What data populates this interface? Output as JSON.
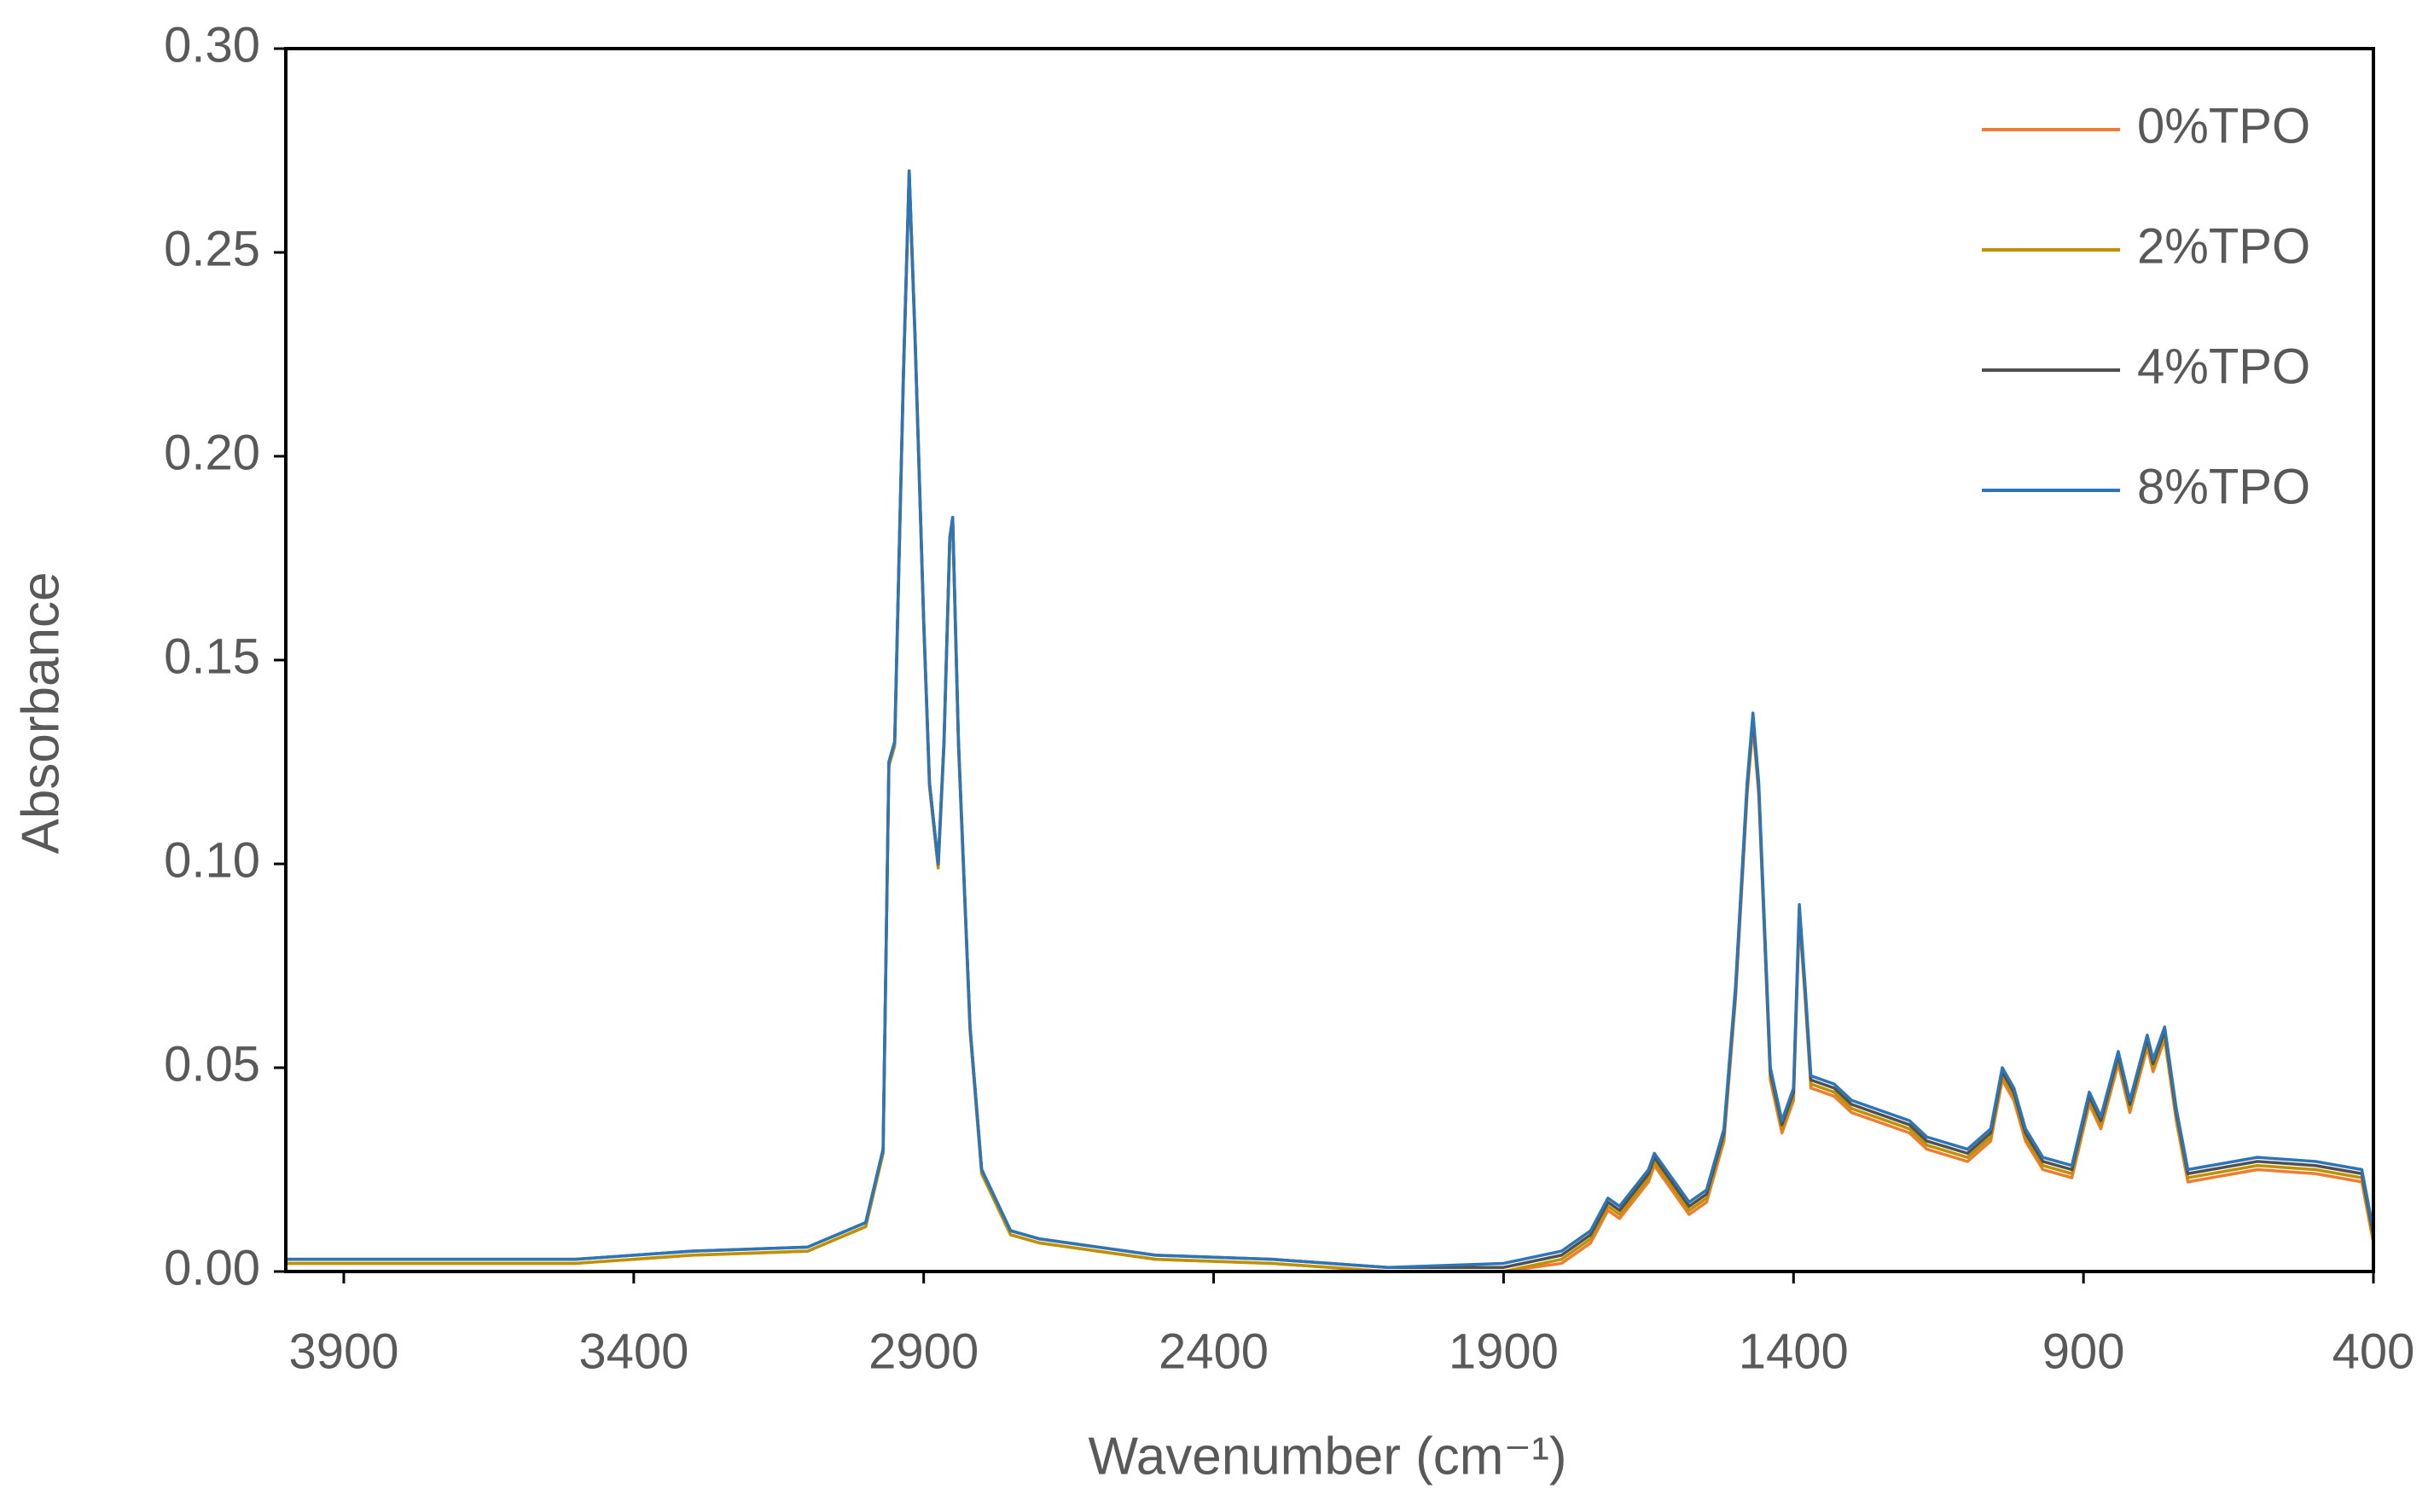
{
  "chart_data": {
    "type": "line",
    "x_label": "Wavenumber (cm⁻¹)",
    "y_label": "Absorbance",
    "xlim": [
      4000,
      400
    ],
    "ylim": [
      0,
      0.3
    ],
    "xticks": [
      3900,
      3400,
      2900,
      2400,
      1900,
      1400,
      900,
      400
    ],
    "yticks": [
      {
        "value": 0,
        "label": "0.00"
      },
      {
        "value": 0.05,
        "label": "0.05"
      },
      {
        "value": 0.1,
        "label": "0.10"
      },
      {
        "value": 0.15,
        "label": "0.15"
      },
      {
        "value": 0.2,
        "label": "0.20"
      },
      {
        "value": 0.25,
        "label": "0.25"
      },
      {
        "value": 0.3,
        "label": "0.30"
      }
    ],
    "legend": "upper right",
    "x": [
      4000,
      3500,
      3300,
      3100,
      3050,
      3000,
      2970,
      2960,
      2950,
      2935,
      2925,
      2915,
      2900,
      2890,
      2875,
      2865,
      2855,
      2850,
      2840,
      2820,
      2800,
      2750,
      2700,
      2600,
      2500,
      2300,
      2100,
      1900,
      1800,
      1750,
      1720,
      1700,
      1650,
      1640,
      1620,
      1580,
      1550,
      1520,
      1500,
      1480,
      1470,
      1460,
      1440,
      1420,
      1400,
      1390,
      1380,
      1370,
      1330,
      1300,
      1200,
      1170,
      1100,
      1060,
      1040,
      1020,
      1000,
      970,
      920,
      890,
      870,
      840,
      820,
      790,
      780,
      760,
      740,
      720,
      600,
      500,
      420,
      400
    ],
    "series": [
      {
        "name": "0%TPO",
        "color": "#ed7d31",
        "values": [
          0.002,
          0.002,
          0.004,
          0.005,
          0.008,
          0.011,
          0.029,
          0.124,
          0.129,
          0.219,
          0.269,
          0.229,
          0.159,
          0.119,
          0.099,
          0.129,
          0.179,
          0.184,
          0.129,
          0.059,
          0.024,
          0.009,
          0.007,
          0.005,
          0.003,
          0.002,
          0.0,
          0.0,
          0.002,
          0.007,
          0.015,
          0.013,
          0.022,
          0.026,
          0.022,
          0.014,
          0.017,
          0.032,
          0.067,
          0.117,
          0.134,
          0.117,
          0.047,
          0.034,
          0.042,
          0.087,
          0.067,
          0.045,
          0.043,
          0.039,
          0.034,
          0.03,
          0.027,
          0.032,
          0.047,
          0.042,
          0.032,
          0.025,
          0.023,
          0.041,
          0.035,
          0.051,
          0.039,
          0.055,
          0.049,
          0.057,
          0.037,
          0.022,
          0.025,
          0.024,
          0.022,
          0.007
        ]
      },
      {
        "name": "2%TPO",
        "color": "#bf9000",
        "values": [
          0.002,
          0.002,
          0.004,
          0.005,
          0.008,
          0.011,
          0.029,
          0.124,
          0.129,
          0.219,
          0.269,
          0.229,
          0.159,
          0.119,
          0.099,
          0.129,
          0.179,
          0.184,
          0.129,
          0.059,
          0.024,
          0.009,
          0.007,
          0.005,
          0.003,
          0.002,
          0.0,
          0.0,
          0.003,
          0.008,
          0.016,
          0.014,
          0.023,
          0.027,
          0.023,
          0.015,
          0.018,
          0.033,
          0.068,
          0.118,
          0.135,
          0.118,
          0.048,
          0.035,
          0.043,
          0.088,
          0.068,
          0.046,
          0.044,
          0.04,
          0.035,
          0.031,
          0.028,
          0.033,
          0.048,
          0.043,
          0.033,
          0.026,
          0.024,
          0.042,
          0.036,
          0.052,
          0.04,
          0.056,
          0.05,
          0.058,
          0.038,
          0.023,
          0.026,
          0.025,
          0.023,
          0.008
        ]
      },
      {
        "name": "4%TPO",
        "color": "#505050",
        "values": [
          0.003,
          0.003,
          0.005,
          0.006,
          0.009,
          0.012,
          0.03,
          0.125,
          0.13,
          0.22,
          0.27,
          0.23,
          0.16,
          0.12,
          0.1,
          0.13,
          0.18,
          0.185,
          0.13,
          0.06,
          0.025,
          0.01,
          0.008,
          0.006,
          0.004,
          0.003,
          0.001,
          0.001,
          0.004,
          0.009,
          0.017,
          0.015,
          0.024,
          0.028,
          0.024,
          0.016,
          0.019,
          0.034,
          0.069,
          0.119,
          0.136,
          0.119,
          0.049,
          0.036,
          0.044,
          0.089,
          0.069,
          0.047,
          0.045,
          0.041,
          0.036,
          0.032,
          0.029,
          0.034,
          0.049,
          0.044,
          0.034,
          0.027,
          0.025,
          0.043,
          0.037,
          0.053,
          0.041,
          0.057,
          0.051,
          0.059,
          0.039,
          0.024,
          0.027,
          0.026,
          0.024,
          0.009
        ]
      },
      {
        "name": "8%TPO",
        "color": "#2e75b6",
        "values": [
          0.003,
          0.003,
          0.005,
          0.006,
          0.009,
          0.012,
          0.03,
          0.125,
          0.13,
          0.22,
          0.27,
          0.23,
          0.16,
          0.12,
          0.1,
          0.13,
          0.18,
          0.185,
          0.13,
          0.06,
          0.025,
          0.01,
          0.008,
          0.006,
          0.004,
          0.003,
          0.001,
          0.002,
          0.005,
          0.01,
          0.018,
          0.016,
          0.025,
          0.029,
          0.025,
          0.017,
          0.02,
          0.035,
          0.07,
          0.12,
          0.137,
          0.12,
          0.05,
          0.037,
          0.045,
          0.09,
          0.07,
          0.048,
          0.046,
          0.042,
          0.037,
          0.033,
          0.03,
          0.035,
          0.05,
          0.045,
          0.035,
          0.028,
          0.026,
          0.044,
          0.038,
          0.054,
          0.042,
          0.058,
          0.052,
          0.06,
          0.04,
          0.025,
          0.028,
          0.027,
          0.025,
          0.01
        ]
      }
    ]
  }
}
